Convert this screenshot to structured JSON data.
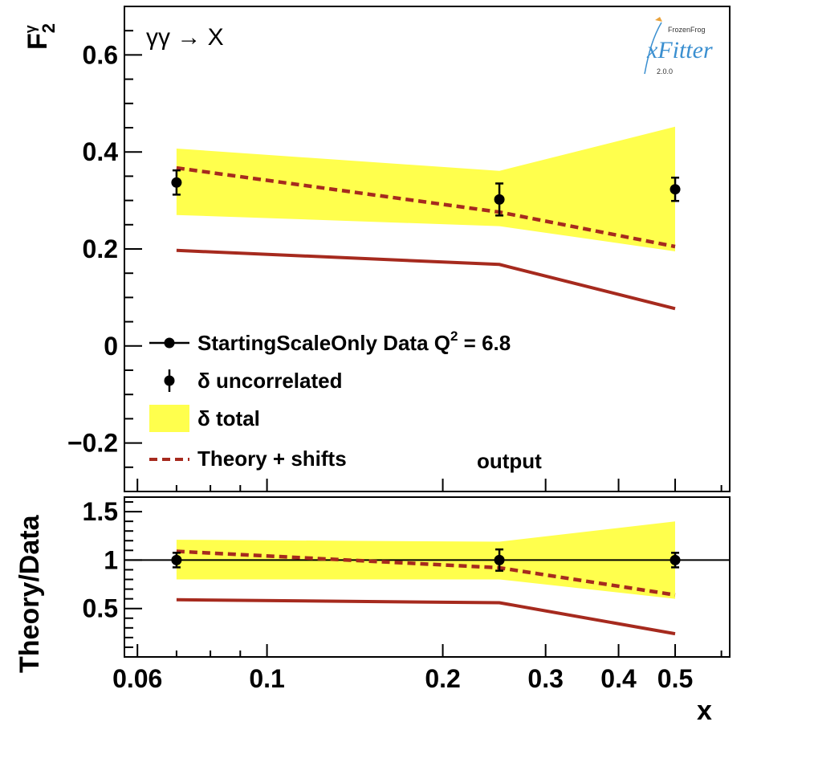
{
  "chart_data": [
    {
      "type": "line",
      "panel": "main",
      "ylabel": "F",
      "ylabel_sub": "2",
      "ylabel_sup": "γ",
      "ylim": [
        -0.3,
        0.7
      ],
      "yticks": [
        -0.2,
        0,
        0.2,
        0.4,
        0.6
      ],
      "ytick_labels": [
        "−0.2",
        "0",
        "0.2",
        "0.4",
        "0.6"
      ],
      "x_scale": "log",
      "xlim": [
        0.057,
        0.62
      ],
      "process_label": "γγ → X",
      "output_label": "output",
      "legend": {
        "placement": "bottom-left",
        "entries": [
          {
            "label": "StartingScaleOnly  Data Q",
            "sup": "2",
            "suffix": " = 6.8",
            "style": "point-line"
          },
          {
            "label": "δ uncorrelated",
            "style": "point-errorbar"
          },
          {
            "label": "δ total",
            "style": "band"
          },
          {
            "label": "Theory + shifts",
            "style": "dashed"
          }
        ]
      },
      "data_points": [
        {
          "x": 0.07,
          "y": 0.337,
          "err": 0.025
        },
        {
          "x": 0.25,
          "y": 0.302,
          "err": 0.033
        },
        {
          "x": 0.5,
          "y": 0.323,
          "err": 0.024
        }
      ],
      "total_band": [
        {
          "x": 0.07,
          "lo": 0.27,
          "hi": 0.407
        },
        {
          "x": 0.25,
          "lo": 0.247,
          "hi": 0.361
        },
        {
          "x": 0.5,
          "lo": 0.195,
          "hi": 0.452
        }
      ],
      "theory_shifts": {
        "x": [
          0.07,
          0.25,
          0.5
        ],
        "y": [
          0.367,
          0.276,
          0.205
        ]
      },
      "theory": {
        "x": [
          0.07,
          0.25,
          0.5
        ],
        "y": [
          0.197,
          0.168,
          0.077
        ]
      }
    },
    {
      "type": "line",
      "panel": "ratio",
      "ylabel": "Theory/Data",
      "xlabel": "x",
      "ylim": [
        0.0,
        1.65
      ],
      "yticks": [
        0.5,
        1,
        1.5
      ],
      "ytick_labels": [
        "0.5",
        "1",
        "1.5"
      ],
      "x_scale": "log",
      "xlim": [
        0.057,
        0.62
      ],
      "xticks": [
        0.06,
        0.1,
        0.2,
        0.3,
        0.4,
        0.5
      ],
      "xtick_labels": [
        "0.06",
        "0.1",
        "0.2",
        "0.3",
        "0.4",
        "0.5"
      ],
      "reference_line": 1,
      "data_points": [
        {
          "x": 0.07,
          "y": 1,
          "err": 0.075
        },
        {
          "x": 0.25,
          "y": 1,
          "err": 0.11
        },
        {
          "x": 0.5,
          "y": 1,
          "err": 0.075
        }
      ],
      "total_band": [
        {
          "x": 0.07,
          "lo": 0.8,
          "hi": 1.21
        },
        {
          "x": 0.25,
          "lo": 0.8,
          "hi": 1.19
        },
        {
          "x": 0.5,
          "lo": 0.6,
          "hi": 1.4
        }
      ],
      "theory_shifts": {
        "x": [
          0.07,
          0.25,
          0.5
        ],
        "y": [
          1.09,
          0.92,
          0.64
        ]
      },
      "theory": {
        "x": [
          0.07,
          0.25,
          0.5
        ],
        "y": [
          0.59,
          0.56,
          0.24
        ]
      }
    }
  ],
  "logo": {
    "top": "FrozenFrog",
    "name": "xFitter",
    "version": "2.0.0"
  },
  "colors": {
    "band": "#ffff4d",
    "theory": "#a62a1e",
    "data": "#000000",
    "logo": "#3a8fd0"
  }
}
